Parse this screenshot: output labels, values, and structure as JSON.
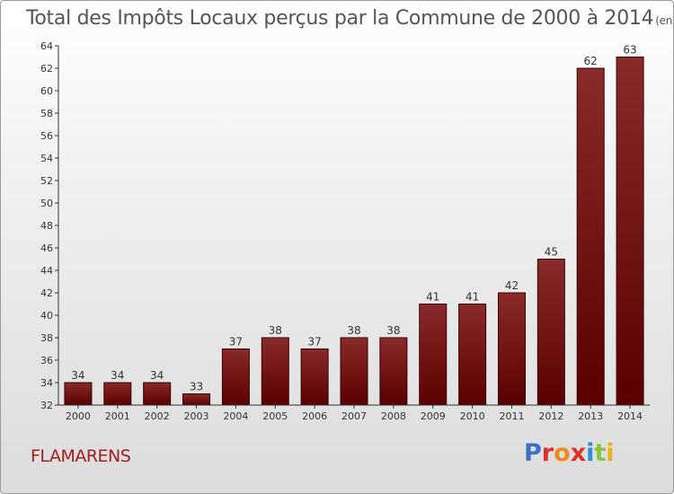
{
  "title": "Total des Impôts Locaux perçus par la Commune de 2000 à 2014",
  "unit_label": "(en milliers d'€)",
  "commune": "FLAMARENS",
  "logo": {
    "text": "Proxiti",
    "colors": [
      "#3a6fc4",
      "#e0302a",
      "#f08a1c",
      "#e0302a",
      "#2b8fd8",
      "#8cc43c",
      "#f0b018"
    ]
  },
  "colors": {
    "bar": "#7a1414",
    "bar_dark": "#5a0505",
    "axis": "#333333",
    "title": "#555555",
    "commune": "#a02020"
  },
  "chart_data": {
    "type": "bar",
    "title": "Total des Impôts Locaux perçus par la Commune de 2000 à 2014",
    "xlabel": "",
    "ylabel": "en milliers d'€",
    "categories": [
      "2000",
      "2001",
      "2002",
      "2003",
      "2004",
      "2005",
      "2006",
      "2007",
      "2008",
      "2009",
      "2010",
      "2011",
      "2012",
      "2013",
      "2014"
    ],
    "values": [
      34,
      34,
      34,
      33,
      37,
      38,
      37,
      38,
      38,
      41,
      41,
      42,
      45,
      62,
      63
    ],
    "ylim": [
      32,
      64
    ],
    "yticks": [
      32,
      34,
      36,
      38,
      40,
      42,
      44,
      46,
      48,
      50,
      52,
      54,
      56,
      58,
      60,
      62,
      64
    ],
    "grid": false
  }
}
